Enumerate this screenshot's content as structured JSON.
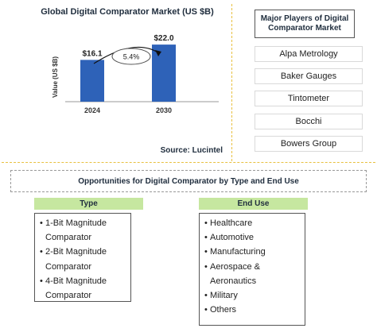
{
  "chart_data": {
    "type": "bar",
    "title": "Global Digital Comparator Market (US $B)",
    "ylabel": "Value (US $B)",
    "xlabel": "",
    "categories": [
      "2024",
      "2030"
    ],
    "values": [
      16.1,
      22.0
    ],
    "value_labels": [
      "$16.1",
      "$22.0"
    ],
    "ylim": [
      0,
      30
    ],
    "grid": false,
    "bar_color": "#2e62b8",
    "cagr_label": "5.4%",
    "source": "Source: Lucintel"
  },
  "players": {
    "title": "Major Players of Digital Comparator Market",
    "items": [
      "Alpa Metrology",
      "Baker Gauges",
      "Tintometer",
      "Bocchi",
      "Bowers Group"
    ]
  },
  "opportunities": {
    "title": "Opportunities for Digital Comparator by Type and End Use",
    "type_header": "Type",
    "type_items": [
      "1-Bit Magnitude Comparator",
      "2-Bit Magnitude Comparator",
      "4-Bit Magnitude Comparator"
    ],
    "enduse_header": "End Use",
    "enduse_items": [
      "Healthcare",
      "Automotive",
      "Manufacturing",
      "Aerospace & Aeronautics",
      "Military",
      "Others"
    ],
    "bullet": "•",
    "header_color": "#c6e7a0"
  }
}
